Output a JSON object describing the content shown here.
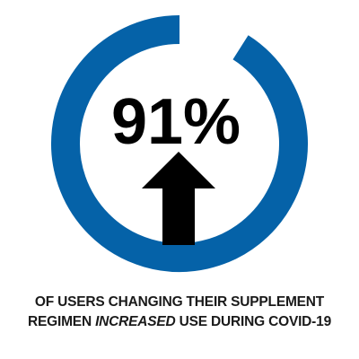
{
  "chart_data": {
    "type": "pie",
    "values": [
      91,
      9
    ],
    "value_label": "91%",
    "accent_color": "#0562a8",
    "remainder_color": "#ffffff",
    "center_icon": "arrow-up-icon"
  },
  "caption": {
    "line1": "OF USERS CHANGING THEIR SUPPLEMENT",
    "line2_start": "REGIMEN",
    "line2_emph": "INCREASED",
    "line2_end": "USE DURING COVID-19"
  }
}
